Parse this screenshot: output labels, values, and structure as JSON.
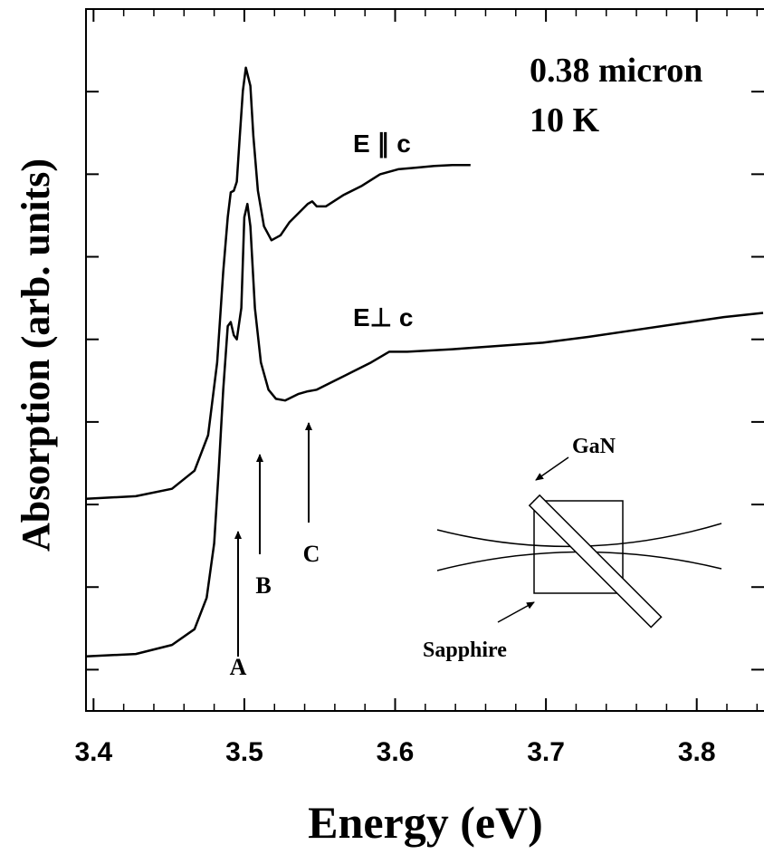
{
  "chart_data": {
    "type": "line",
    "xlabel": "Energy (eV)",
    "ylabel": "Absorption (arb. units)",
    "xlim": [
      3.395,
      3.844
    ],
    "xticks": [
      3.4,
      3.5,
      3.6,
      3.7,
      3.8
    ],
    "xminorticks": [
      3.42,
      3.44,
      3.46,
      3.48,
      3.52,
      3.54,
      3.56,
      3.58,
      3.62,
      3.64,
      3.66,
      3.68,
      3.72,
      3.74,
      3.76,
      3.78,
      3.82,
      3.84
    ],
    "ylim": [
      0,
      8.5
    ],
    "yticks": [
      0.5,
      1.5,
      2.5,
      3.5,
      4.5,
      5.5,
      6.5,
      7.5
    ],
    "grid": false,
    "annotations": [
      "0.38 micron",
      "10 K",
      "A",
      "B",
      "C",
      "GaN",
      "Sapphire"
    ],
    "series": [
      {
        "name": "E ∥ c",
        "color": "#000000",
        "x": [
          3.395,
          3.428,
          3.452,
          3.467,
          3.476,
          3.482,
          3.486,
          3.489,
          3.491,
          3.493,
          3.495,
          3.497,
          3.499,
          3.501,
          3.504,
          3.506,
          3.509,
          3.513,
          3.518,
          3.524,
          3.53,
          3.536,
          3.542,
          3.545,
          3.548,
          3.554,
          3.566,
          3.578,
          3.59,
          3.602,
          3.614,
          3.626,
          3.638,
          3.65
        ],
        "values": [
          2.57,
          2.6,
          2.69,
          2.91,
          3.34,
          4.22,
          5.32,
          5.98,
          6.28,
          6.3,
          6.41,
          6.96,
          7.51,
          7.79,
          7.57,
          6.96,
          6.3,
          5.87,
          5.7,
          5.76,
          5.92,
          6.03,
          6.14,
          6.17,
          6.11,
          6.11,
          6.25,
          6.36,
          6.5,
          6.56,
          6.58,
          6.6,
          6.61,
          6.61
        ]
      },
      {
        "name": "E⊥ c",
        "color": "#000000",
        "x": [
          3.395,
          3.428,
          3.452,
          3.467,
          3.475,
          3.48,
          3.483,
          3.486,
          3.489,
          3.491,
          3.493,
          3.495,
          3.498,
          3.5,
          3.502,
          3.504,
          3.507,
          3.511,
          3.516,
          3.521,
          3.527,
          3.536,
          3.542,
          3.548,
          3.56,
          3.572,
          3.584,
          3.596,
          3.608,
          3.638,
          3.668,
          3.698,
          3.728,
          3.758,
          3.788,
          3.818,
          3.844
        ],
        "values": [
          0.66,
          0.69,
          0.8,
          0.99,
          1.37,
          2.03,
          2.91,
          3.89,
          4.66,
          4.71,
          4.55,
          4.5,
          4.88,
          5.98,
          6.14,
          5.87,
          4.88,
          4.22,
          3.89,
          3.78,
          3.76,
          3.84,
          3.87,
          3.89,
          4.0,
          4.11,
          4.22,
          4.35,
          4.35,
          4.38,
          4.42,
          4.46,
          4.53,
          4.61,
          4.69,
          4.77,
          4.82
        ]
      }
    ]
  }
}
